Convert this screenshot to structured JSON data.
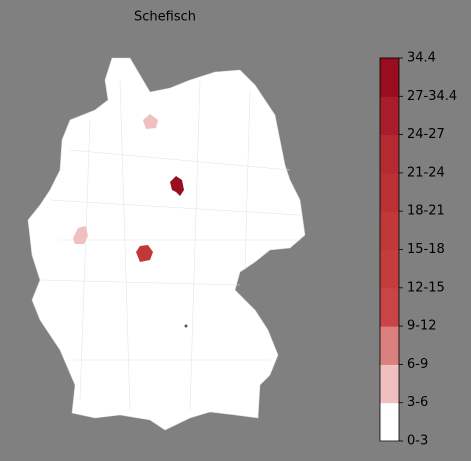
{
  "title": "Schefisch",
  "colorbar": {
    "ticks": [
      "0-3",
      "3-6",
      "6-9",
      "9-12",
      "12-15",
      "15-18",
      "18-21",
      "21-24",
      "24-27",
      "27-34.4",
      "34.4"
    ],
    "colors": [
      "#ffffff",
      "#f0c0c0",
      "#dc7f7f",
      "#c94444",
      "#c53c3c",
      "#c13838",
      "#bb3033",
      "#b52a30",
      "#a91c2a",
      "#9a0d20"
    ]
  }
}
